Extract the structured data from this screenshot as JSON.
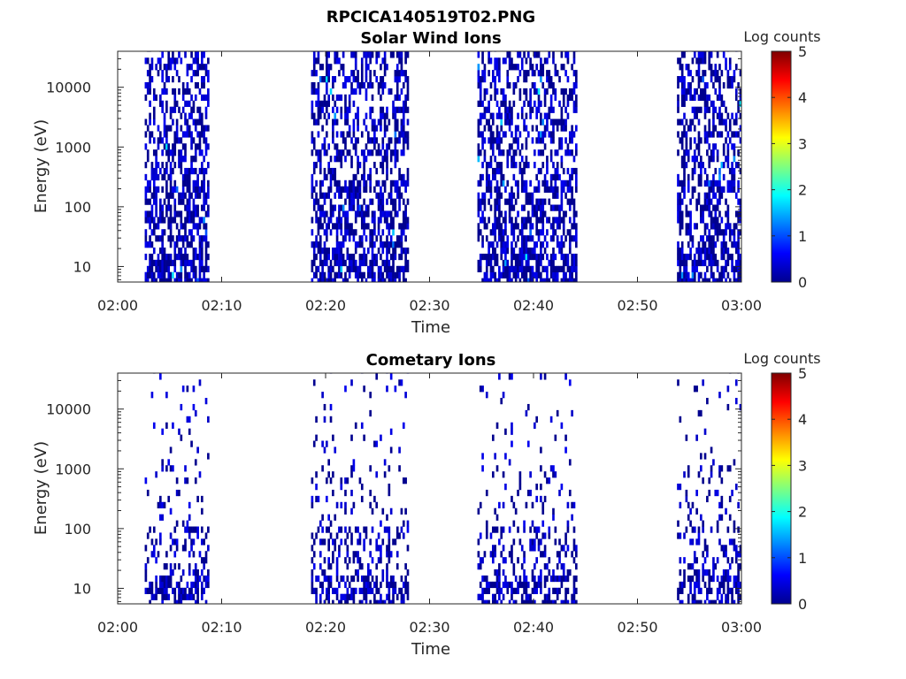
{
  "figure_title": "RPCICA140519T02.PNG",
  "colors": {
    "colormap": [
      "#00008f",
      "#0000ff",
      "#007fff",
      "#00ffff",
      "#7fff7f",
      "#ffff00",
      "#ff7f00",
      "#ff0000",
      "#7f0000"
    ]
  },
  "chart_data": [
    {
      "type": "heatmap",
      "title": "Solar Wind Ions",
      "xlabel": "Time",
      "ylabel": "Energy (eV)",
      "x_ticks": [
        "02:00",
        "02:10",
        "02:20",
        "02:30",
        "02:40",
        "02:50",
        "03:00"
      ],
      "x_range_minutes": [
        0,
        60
      ],
      "y_scale": "log",
      "y_ticks": [
        "10",
        "100",
        "1000",
        "10000"
      ],
      "y_range": [
        5.5,
        40000
      ],
      "colorbar": {
        "label": "Log counts",
        "ticks": [
          "0",
          "1",
          "2",
          "3",
          "4",
          "5"
        ],
        "range": [
          0,
          5
        ]
      },
      "data_intervals_minutes": [
        [
          2.6,
          8.8
        ],
        [
          18.6,
          28.0
        ],
        [
          34.6,
          44.2
        ],
        [
          53.8,
          59.9
        ]
      ],
      "dominant_log_count": 0.3,
      "peak_log_count": 1.8
    },
    {
      "type": "heatmap",
      "title": "Cometary Ions",
      "xlabel": "Time",
      "ylabel": "Energy (eV)",
      "x_ticks": [
        "02:00",
        "02:10",
        "02:20",
        "02:30",
        "02:40",
        "02:50",
        "03:00"
      ],
      "x_range_minutes": [
        0,
        60
      ],
      "y_scale": "log",
      "y_ticks": [
        "10",
        "100",
        "1000",
        "10000"
      ],
      "y_range": [
        5.5,
        40000
      ],
      "colorbar": {
        "label": "Log counts",
        "ticks": [
          "0",
          "1",
          "2",
          "3",
          "4",
          "5"
        ],
        "range": [
          0,
          5
        ]
      },
      "data_intervals_minutes": [
        [
          2.6,
          8.8
        ],
        [
          18.6,
          28.0
        ],
        [
          34.6,
          44.2
        ],
        [
          53.8,
          59.9
        ]
      ],
      "dominant_log_count": 0.2,
      "peak_log_count": 0.4
    }
  ]
}
